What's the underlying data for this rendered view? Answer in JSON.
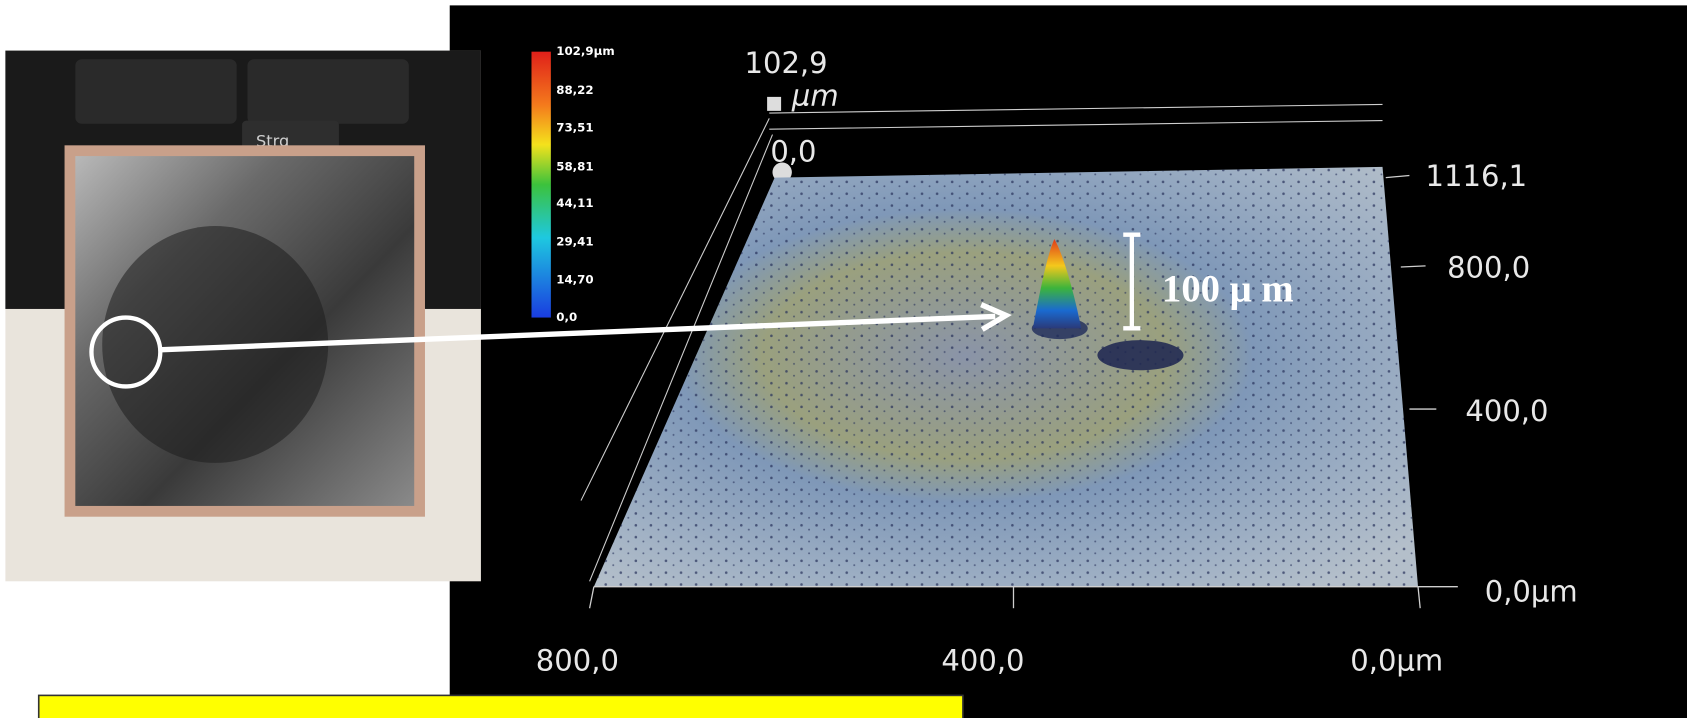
{
  "photo": {
    "key_label": "Strg"
  },
  "colorbar": {
    "labels": [
      "102,9μm",
      "88,22",
      "73,51",
      "58,81",
      "44,11",
      "29,41",
      "14,70",
      "0,0"
    ]
  },
  "plot": {
    "z_max": "102,9",
    "z_unit": "μm",
    "z_origin": "0,0",
    "y_axis_labels": [
      "1116,1",
      "800,0",
      "400,0",
      "0,0μm"
    ],
    "x_axis_labels": [
      "800,0",
      "400,0",
      "0,0μm"
    ],
    "scale_bar": "100 μ m"
  }
}
